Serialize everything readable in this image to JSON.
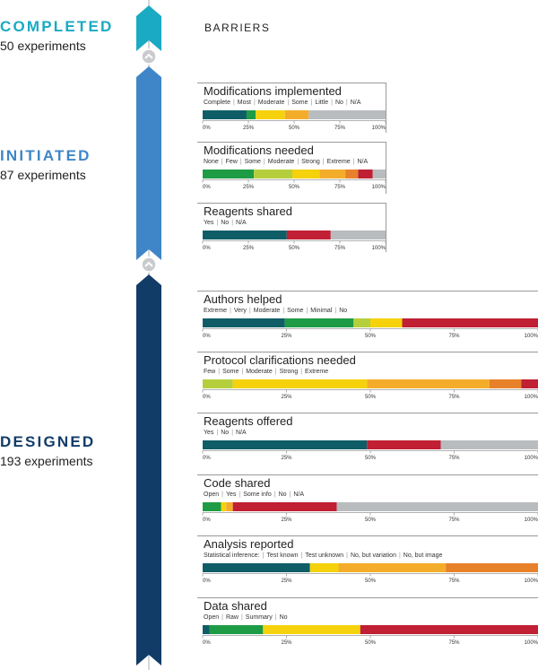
{
  "header": {
    "title": "BARRIERS"
  },
  "stages": [
    {
      "id": "completed",
      "label": "COMPLETED",
      "count": "50 experiments",
      "color": "#1aaac3"
    },
    {
      "id": "initiated",
      "label": "INITIATED",
      "count": "87 experiments",
      "color": "#3f86c8"
    },
    {
      "id": "designed",
      "label": "DESIGNED",
      "count": "193 experiments",
      "color": "#123c68"
    }
  ],
  "colors": {
    "teal": "#0f5e67",
    "green": "#1e9c45",
    "lime": "#b5cf3c",
    "yellow": "#f5d20c",
    "orange": "#f4ad2a",
    "dkorange": "#e7822a",
    "red": "#c01f34",
    "gray": "#b9bcbf"
  },
  "chart_data": [
    {
      "type": "bar",
      "stacked": true,
      "stage": "initiated",
      "title": "Modifications implemented",
      "categories": [
        "Complete",
        "Most",
        "Moderate",
        "Some",
        "Little",
        "No",
        "N/A"
      ],
      "values": [
        24,
        5,
        16,
        13,
        0,
        0,
        42
      ],
      "colors": [
        "teal",
        "green",
        "yellow",
        "orange",
        "red",
        "red",
        "gray"
      ],
      "xlim": [
        0,
        100
      ],
      "ticks": [
        "0%",
        "25%",
        "50%",
        "75%",
        "100%"
      ]
    },
    {
      "type": "bar",
      "stacked": true,
      "stage": "initiated",
      "title": "Modifications needed",
      "categories": [
        "None",
        "Few",
        "Some",
        "Moderate",
        "Strong",
        "Extreme",
        "N/A"
      ],
      "values": [
        28,
        21,
        15,
        14,
        7,
        8,
        7
      ],
      "colors": [
        "green",
        "lime",
        "yellow",
        "orange",
        "dkorange",
        "red",
        "gray"
      ],
      "xlim": [
        0,
        100
      ],
      "ticks": [
        "0%",
        "25%",
        "50%",
        "75%",
        "100%"
      ]
    },
    {
      "type": "bar",
      "stacked": true,
      "stage": "initiated",
      "title": "Reagents shared",
      "categories": [
        "Yes",
        "No",
        "N/A"
      ],
      "values": [
        46,
        24,
        30
      ],
      "colors": [
        "teal",
        "red",
        "gray"
      ],
      "xlim": [
        0,
        100
      ],
      "ticks": [
        "0%",
        "25%",
        "50%",
        "75%",
        "100%"
      ]
    },
    {
      "type": "bar",
      "stacked": true,
      "stage": "designed",
      "title": "Authors helped",
      "categories": [
        "Extreme",
        "Very",
        "Moderate",
        "Some",
        "Minimal",
        "No"
      ],
      "values": [
        24.5,
        20.5,
        0,
        5,
        9.5,
        40.5
      ],
      "colors": [
        "teal",
        "green",
        "green",
        "lime",
        "yellow",
        "red"
      ],
      "xlim": [
        0,
        100
      ],
      "ticks": [
        "0%",
        "25%",
        "50%",
        "75%",
        "100%"
      ]
    },
    {
      "type": "bar",
      "stacked": true,
      "stage": "designed",
      "title": "Protocol clarifications needed",
      "categories": [
        "Few",
        "Some",
        "Moderate",
        "Strong",
        "Extreme"
      ],
      "values": [
        9,
        40,
        36.5,
        9.5,
        5
      ],
      "colors": [
        "lime",
        "yellow",
        "orange",
        "dkorange",
        "red"
      ],
      "xlim": [
        0,
        100
      ],
      "ticks": [
        "0%",
        "25%",
        "50%",
        "75%",
        "100%"
      ]
    },
    {
      "type": "bar",
      "stacked": true,
      "stage": "designed",
      "title": "Reagents offered",
      "categories": [
        "Yes",
        "No",
        "N/A"
      ],
      "values": [
        49,
        22,
        29
      ],
      "colors": [
        "teal",
        "red",
        "gray"
      ],
      "xlim": [
        0,
        100
      ],
      "ticks": [
        "0%",
        "25%",
        "50%",
        "75%",
        "100%"
      ]
    },
    {
      "type": "bar",
      "stacked": true,
      "stage": "designed",
      "title": "Code shared",
      "categories": [
        "Open",
        "Yes",
        "Some info",
        "No",
        "N/A"
      ],
      "values": [
        5.5,
        1.5,
        2,
        31,
        60
      ],
      "colors": [
        "green",
        "yellow",
        "orange",
        "red",
        "gray"
      ],
      "xlim": [
        0,
        100
      ],
      "ticks": [
        "0%",
        "25%",
        "50%",
        "75%",
        "100%"
      ]
    },
    {
      "type": "bar",
      "stacked": true,
      "stage": "designed",
      "title": "Analysis reported",
      "categories": [
        "Statistical inference:",
        "Test known",
        "Test unknown",
        "No, but variation",
        "No, but image"
      ],
      "values": [
        0,
        32,
        8.5,
        32,
        27.5
      ],
      "colors": [
        "teal",
        "teal",
        "yellow",
        "orange",
        "dkorange"
      ],
      "xlim": [
        0,
        100
      ],
      "ticks": [
        "0%",
        "25%",
        "50%",
        "75%",
        "100%"
      ]
    },
    {
      "type": "bar",
      "stacked": true,
      "stage": "designed",
      "title": "Data shared",
      "categories": [
        "Open",
        "Raw",
        "Summary",
        "No"
      ],
      "values": [
        2,
        16,
        29,
        53
      ],
      "colors": [
        "teal",
        "green",
        "yellow",
        "red"
      ],
      "xlim": [
        0,
        100
      ],
      "ticks": [
        "0%",
        "25%",
        "50%",
        "75%",
        "100%"
      ]
    }
  ]
}
